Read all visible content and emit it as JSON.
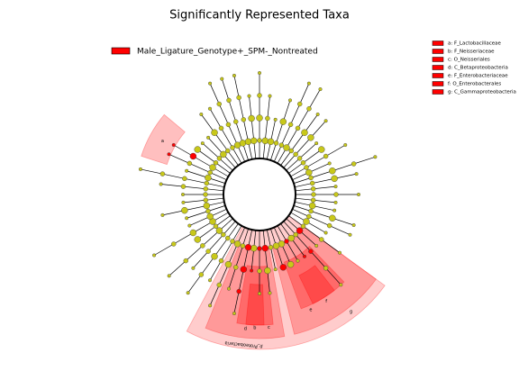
{
  "title": "Significantly Represented Taxa",
  "class_legend": {
    "label": "Male_Ligature_Genotype+_SPM-_Nontreated",
    "color": "#ff0000"
  },
  "clade_legend": [
    {
      "label": "a: F_Lactobacillaceae"
    },
    {
      "label": "b: F_Neisseriaceae"
    },
    {
      "label": "c: O_Neisseriales"
    },
    {
      "label": "d: C_Betaproteobacteria"
    },
    {
      "label": "e: F_Enterobacteriaceae"
    },
    {
      "label": "f: O_Enterobacterales"
    },
    {
      "label": "g: C_Gammaproteobacteria"
    }
  ],
  "clade_marks": [
    "a",
    "b",
    "c",
    "d",
    "e",
    "f",
    "g"
  ],
  "phylum_label": "p_Proteobacteria"
}
